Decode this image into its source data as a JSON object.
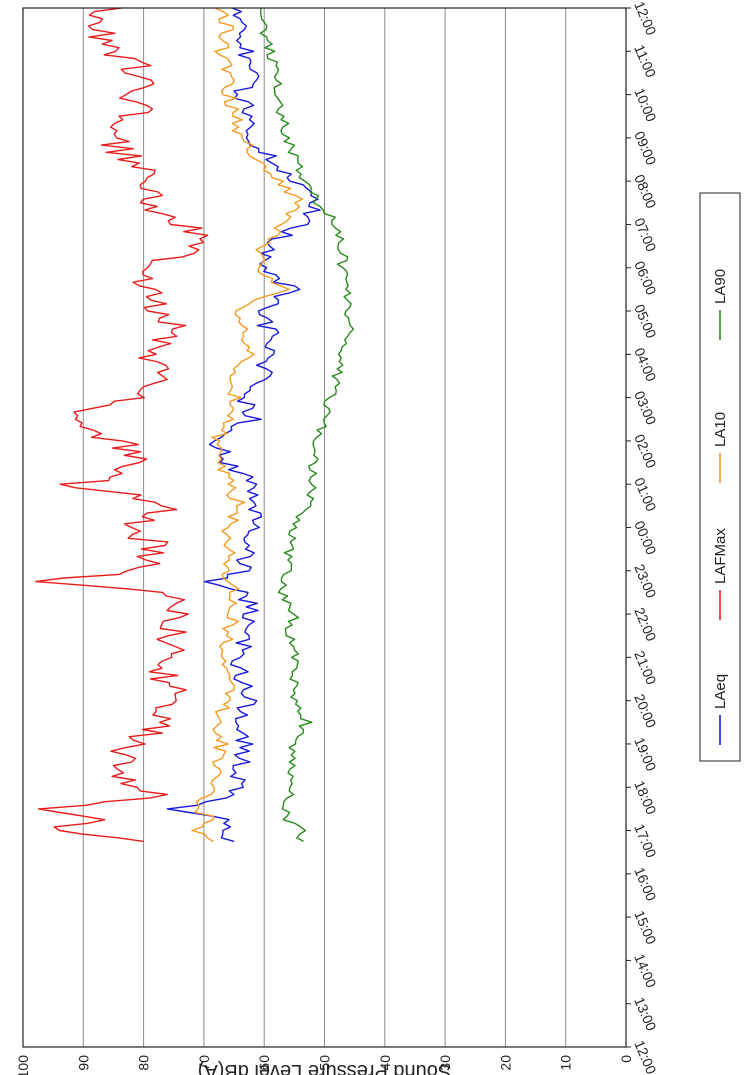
{
  "chart_data": {
    "type": "line",
    "orientation": "rotated-90",
    "ylabel": "Sound Pressure Level dB(A)",
    "xlabel": "",
    "ylim": [
      0,
      100
    ],
    "y_ticks": [
      "0",
      "10",
      "20",
      "30",
      "40",
      "50",
      "60",
      "70",
      "80",
      "90",
      "100"
    ],
    "x_ticks": [
      "12:00",
      "13:00",
      "14:00",
      "15:00",
      "16:00",
      "17:00",
      "18:00",
      "19:00",
      "20:00",
      "21:00",
      "22:00",
      "23:00",
      "00:00",
      "01:00",
      "02:00",
      "03:00",
      "04:00",
      "05:00",
      "06:00",
      "07:00",
      "08:00",
      "09:00",
      "10:00",
      "11:00",
      "12:00"
    ],
    "grid": true,
    "legend_position": "right",
    "x_hours": [
      16.75,
      17,
      17.25,
      17.5,
      17.75,
      18,
      18.5,
      19,
      19.5,
      20,
      20.5,
      21,
      21.5,
      22,
      22.5,
      22.75,
      23,
      23.5,
      24,
      24.5,
      25,
      25.5,
      26,
      26.5,
      27,
      27.5,
      28,
      28.5,
      29,
      29.5,
      30,
      30.5,
      31,
      31.5,
      32,
      32.5,
      33,
      33.5,
      34,
      34.5,
      35,
      35.5,
      36
    ],
    "series": [
      {
        "name": "LAeq",
        "color": "#1a1adc",
        "values": [
          66,
          67,
          65,
          76,
          66,
          64,
          64,
          63,
          65,
          62,
          64,
          64,
          63,
          62,
          63,
          70,
          63,
          63,
          62,
          61,
          62,
          66,
          68,
          62,
          63,
          60,
          60,
          59,
          61,
          55,
          61,
          59,
          54,
          51,
          55,
          59,
          62,
          62,
          64,
          62,
          63,
          63,
          65
        ]
      },
      {
        "name": "LAFMax",
        "color": "#e81c1c",
        "values": [
          83,
          95,
          86,
          97,
          77,
          80,
          85,
          82,
          78,
          75,
          76,
          76,
          75,
          74,
          75,
          96,
          80,
          78,
          81,
          76,
          91,
          78,
          85,
          94,
          81,
          78,
          80,
          75,
          78,
          79,
          79,
          70,
          73,
          80,
          77,
          83,
          86,
          81,
          82,
          80,
          84,
          88,
          85
        ]
      },
      {
        "name": "LA10",
        "color": "#f49a20",
        "values": [
          69,
          71,
          68,
          72,
          70,
          69,
          68,
          67,
          68,
          66,
          66,
          67,
          66,
          65,
          65,
          66,
          66,
          66,
          66,
          64,
          66,
          67,
          68,
          66,
          65,
          65,
          62,
          63,
          64,
          57,
          61,
          60,
          57,
          54,
          58,
          61,
          64,
          65,
          66,
          66,
          67,
          66,
          67
        ]
      },
      {
        "name": "LA90",
        "color": "#2a8a1e",
        "values": [
          54,
          54,
          56,
          57,
          56,
          56,
          55,
          55,
          53,
          55,
          55,
          55,
          56,
          55,
          57,
          57,
          56,
          56,
          55,
          53,
          52,
          52,
          51,
          50,
          49,
          48,
          47,
          46,
          46,
          46,
          47,
          47,
          48,
          51,
          53,
          55,
          56,
          57,
          58,
          58,
          59,
          60,
          60
        ]
      }
    ]
  }
}
